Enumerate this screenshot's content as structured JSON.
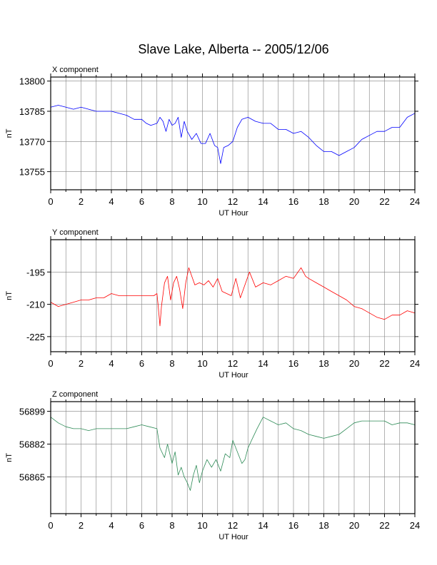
{
  "title": "Slave Lake, Alberta -- 2005/12/06",
  "chart_data": [
    {
      "type": "line",
      "title": "X component",
      "xlabel": "UT Hour",
      "ylabel": "nT",
      "xlim": [
        0,
        24
      ],
      "ylim": [
        13746,
        13802
      ],
      "grid": true,
      "xticks": [
        "0",
        "2",
        "4",
        "6",
        "8",
        "10",
        "12",
        "14",
        "16",
        "18",
        "20",
        "22",
        "24"
      ],
      "yticks": [
        "13800",
        "13785",
        "13770",
        "13755"
      ],
      "ytick_values": [
        13800,
        13785,
        13770,
        13755
      ],
      "series": [
        {
          "color": "#0000ff",
          "x": [
            0,
            0.5,
            1,
            1.5,
            2,
            2.5,
            3,
            3.5,
            4,
            4.5,
            5,
            5.5,
            6,
            6.3,
            6.6,
            7,
            7.2,
            7.4,
            7.6,
            7.8,
            8,
            8.2,
            8.4,
            8.6,
            8.8,
            9,
            9.3,
            9.6,
            9.9,
            10.2,
            10.5,
            10.8,
            11,
            11.2,
            11.4,
            11.7,
            12,
            12.3,
            12.6,
            13,
            13.5,
            14,
            14.5,
            15,
            15.5,
            16,
            16.5,
            17,
            17.5,
            18,
            18.5,
            19,
            19.5,
            20,
            20.5,
            21,
            21.5,
            22,
            22.5,
            23,
            23.5,
            24
          ],
          "values": [
            13787,
            13788,
            13787,
            13786,
            13787,
            13786,
            13785,
            13785,
            13785,
            13784,
            13783,
            13781,
            13781,
            13779,
            13778,
            13779,
            13782,
            13780,
            13775,
            13781,
            13778,
            13779,
            13782,
            13772,
            13780,
            13775,
            13771,
            13774,
            13769,
            13769,
            13774,
            13768,
            13767,
            13759,
            13767,
            13768,
            13770,
            13777,
            13781,
            13782,
            13780,
            13779,
            13779,
            13776,
            13776,
            13774,
            13775,
            13772,
            13768,
            13765,
            13765,
            13763,
            13765,
            13767,
            13771,
            13773,
            13775,
            13775,
            13777,
            13777,
            13782,
            13784
          ]
        }
      ]
    },
    {
      "type": "line",
      "title": "Y component",
      "xlabel": "UT Hour",
      "ylabel": "nT",
      "xlim": [
        0,
        24
      ],
      "ylim": [
        -232,
        -180
      ],
      "grid": true,
      "xticks": [
        "0",
        "2",
        "4",
        "6",
        "8",
        "10",
        "12",
        "14",
        "16",
        "18",
        "20",
        "22",
        "24"
      ],
      "yticks": [
        "-195",
        "-210",
        "-225"
      ],
      "ytick_values": [
        -195,
        -210,
        -225
      ],
      "series": [
        {
          "color": "#ff0000",
          "x": [
            0,
            0.5,
            1,
            1.5,
            2,
            2.5,
            3,
            3.5,
            4,
            4.5,
            5,
            5.5,
            6,
            6.5,
            6.8,
            7,
            7.1,
            7.2,
            7.3,
            7.5,
            7.7,
            7.9,
            8.1,
            8.3,
            8.5,
            8.7,
            8.9,
            9.1,
            9.3,
            9.5,
            9.8,
            10.1,
            10.4,
            10.7,
            11,
            11.3,
            11.6,
            11.9,
            12.2,
            12.5,
            12.8,
            13.1,
            13.5,
            14,
            14.5,
            15,
            15.5,
            16,
            16.5,
            16.8,
            17,
            17.5,
            18,
            18.5,
            19,
            19.5,
            20,
            20.5,
            21,
            21.5,
            22,
            22.5,
            23,
            23.5,
            24
          ],
          "values": [
            -209,
            -211,
            -210,
            -209,
            -208,
            -208,
            -207,
            -207,
            -205,
            -206,
            -206,
            -206,
            -206,
            -206,
            -206,
            -205,
            -212,
            -220,
            -211,
            -200,
            -197,
            -208,
            -200,
            -197,
            -203,
            -212,
            -200,
            -193,
            -197,
            -201,
            -200,
            -201,
            -199,
            -202,
            -198,
            -204,
            -205,
            -206,
            -198,
            -207,
            -201,
            -195,
            -202,
            -200,
            -201,
            -199,
            -197,
            -198,
            -193,
            -197,
            -198,
            -200,
            -202,
            -204,
            -206,
            -208,
            -211,
            -212,
            -214,
            -216,
            -217,
            -215,
            -215,
            -213,
            -214
          ]
        }
      ]
    },
    {
      "type": "line",
      "title": "Z component",
      "xlabel": "UT Hour",
      "ylabel": "nT",
      "xlim": [
        0,
        24
      ],
      "ylim": [
        56846,
        56904
      ],
      "grid": true,
      "xticks": [
        "0",
        "2",
        "4",
        "6",
        "8",
        "10",
        "12",
        "14",
        "16",
        "18",
        "20",
        "22",
        "24"
      ],
      "yticks": [
        "56899",
        "56882",
        "56865"
      ],
      "ytick_values": [
        56899,
        56882,
        56865
      ],
      "series": [
        {
          "color": "#2e8b57",
          "x": [
            0,
            0.5,
            1,
            1.5,
            2,
            2.5,
            3,
            3.5,
            4,
            4.5,
            5,
            5.5,
            6,
            6.5,
            7,
            7.2,
            7.5,
            7.7,
            8,
            8.2,
            8.4,
            8.6,
            8.8,
            9,
            9.2,
            9.4,
            9.6,
            9.8,
            10,
            10.3,
            10.6,
            10.9,
            11.2,
            11.5,
            11.8,
            12,
            12.3,
            12.6,
            12.8,
            13,
            13.3,
            13.6,
            14,
            14.5,
            15,
            15.5,
            16,
            16.5,
            17,
            17.5,
            18,
            18.5,
            19,
            19.5,
            20,
            20.5,
            21,
            21.5,
            22,
            22.5,
            23,
            23.5,
            24
          ],
          "values": [
            56896,
            56893,
            56891,
            56890,
            56890,
            56889,
            56890,
            56890,
            56890,
            56890,
            56890,
            56891,
            56892,
            56891,
            56890,
            56880,
            56875,
            56882,
            56872,
            56878,
            56866,
            56870,
            56865,
            56862,
            56858,
            56866,
            56871,
            56862,
            56868,
            56874,
            56870,
            56874,
            56868,
            56877,
            56875,
            56884,
            56878,
            56872,
            56874,
            56880,
            56885,
            56890,
            56896,
            56894,
            56892,
            56893,
            56890,
            56889,
            56887,
            56886,
            56885,
            56886,
            56887,
            56890,
            56893,
            56894,
            56894,
            56894,
            56894,
            56892,
            56893,
            56893,
            56892
          ]
        }
      ]
    }
  ]
}
